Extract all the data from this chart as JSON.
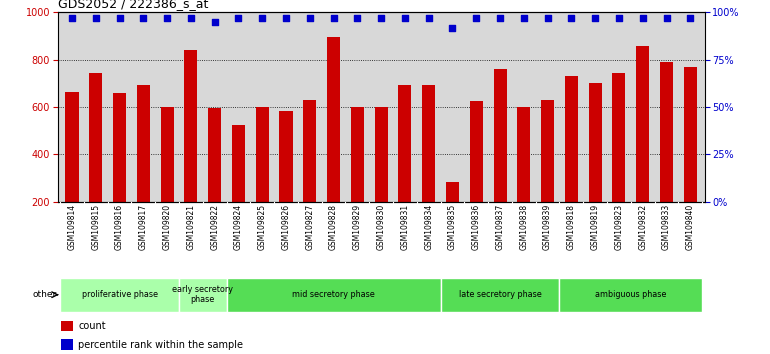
{
  "title": "GDS2052 / 222386_s_at",
  "samples": [
    "GSM109814",
    "GSM109815",
    "GSM109816",
    "GSM109817",
    "GSM109820",
    "GSM109821",
    "GSM109822",
    "GSM109824",
    "GSM109825",
    "GSM109826",
    "GSM109827",
    "GSM109828",
    "GSM109829",
    "GSM109830",
    "GSM109831",
    "GSM109834",
    "GSM109835",
    "GSM109836",
    "GSM109837",
    "GSM109838",
    "GSM109839",
    "GSM109818",
    "GSM109819",
    "GSM109823",
    "GSM109832",
    "GSM109833",
    "GSM109840"
  ],
  "counts": [
    665,
    745,
    660,
    695,
    600,
    840,
    595,
    525,
    600,
    585,
    630,
    895,
    600,
    600,
    695,
    695,
    285,
    625,
    760,
    600,
    630,
    730,
    700,
    745,
    860,
    790,
    770
  ],
  "percentile_ranks": [
    97,
    97,
    97,
    97,
    97,
    97,
    95,
    97,
    97,
    97,
    97,
    97,
    97,
    97,
    97,
    97,
    92,
    97,
    97,
    97,
    97,
    97,
    97,
    97,
    97,
    97,
    97
  ],
  "phases": [
    {
      "name": "proliferative phase",
      "start": 0,
      "end": 5,
      "color": "#aaffaa"
    },
    {
      "name": "early secretory\nphase",
      "start": 5,
      "end": 7,
      "color": "#aaffaa"
    },
    {
      "name": "mid secretory phase",
      "start": 7,
      "end": 16,
      "color": "#55dd55"
    },
    {
      "name": "late secretory phase",
      "start": 16,
      "end": 21,
      "color": "#55dd55"
    },
    {
      "name": "ambiguous phase",
      "start": 21,
      "end": 27,
      "color": "#55dd55"
    }
  ],
  "bar_color": "#cc0000",
  "dot_color": "#0000cc",
  "ylim_left": [
    200,
    1000
  ],
  "ylim_right": [
    0,
    100
  ],
  "yticks_left": [
    200,
    400,
    600,
    800,
    1000
  ],
  "yticks_right": [
    0,
    25,
    50,
    75,
    100
  ],
  "grid_values": [
    400,
    600,
    800
  ],
  "chart_bg": "#d8d8d8",
  "label_bg": "#cccccc"
}
